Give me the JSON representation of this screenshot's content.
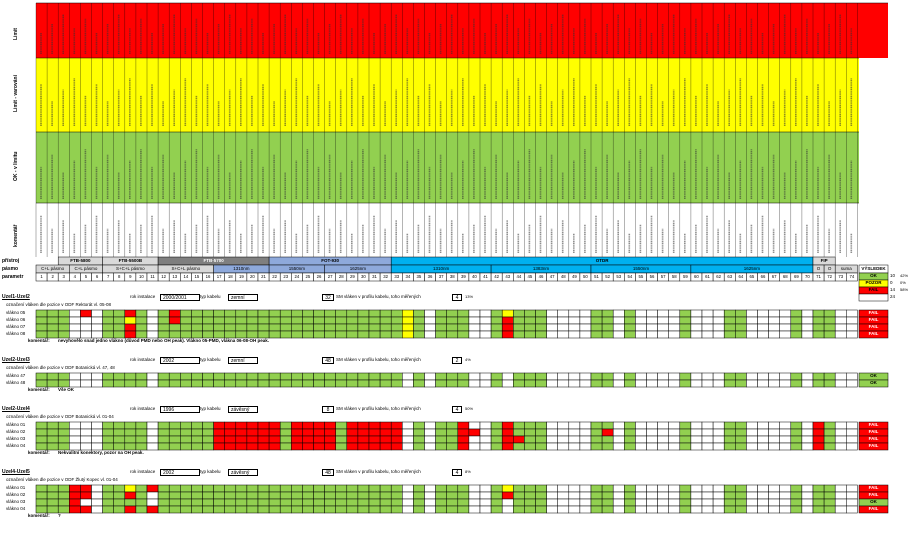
{
  "header": {
    "band_labels": {
      "limit": "Limit",
      "warning": "Limit - varování",
      "ok": "OK - v limitu",
      "comments": "komentář"
    },
    "row_labels": {
      "instrument": "přístroj",
      "band": "pásmo",
      "param": "parametr"
    },
    "instruments": [
      {
        "name": "FTB-5800",
        "color": "#d9d9d9"
      },
      {
        "name": "FTB-5500B",
        "color": "#d9d9d9"
      },
      {
        "name": "FTB-5700",
        "color": "#7f7f7f"
      },
      {
        "name": "FOT-930",
        "color": "#8ea9db"
      },
      {
        "name": "OTDR",
        "color": "#00b0f0"
      },
      {
        "name": "FIP",
        "color": "#d9d9d9"
      }
    ],
    "bands": [
      "C+L pásmo",
      "C+L pásmo",
      "S+C+L pásmo",
      "S+C+L pásmo",
      "1310nm",
      "1550nm",
      "1625nm",
      "1310nm",
      "1383nm",
      "1550nm",
      "1625nm",
      "O",
      "O",
      "suma"
    ],
    "verdict_header": "VÝSLEDEK",
    "param_numbers": [
      "1",
      "2",
      "3",
      "4",
      "5",
      "6",
      "7",
      "8",
      "9",
      "10",
      "11",
      "12",
      "13",
      "14",
      "15",
      "16",
      "17",
      "18",
      "19",
      "20",
      "21",
      "22",
      "23",
      "24",
      "25",
      "26",
      "27",
      "28",
      "29",
      "30",
      "31",
      "32",
      "33",
      "34",
      "35",
      "36",
      "37",
      "38",
      "39",
      "40",
      "41",
      "42",
      "43",
      "44",
      "45",
      "46",
      "47",
      "48",
      "49",
      "50",
      "51",
      "52",
      "53",
      "54",
      "55",
      "56",
      "57",
      "58",
      "59",
      "60",
      "61",
      "62",
      "63",
      "64",
      "65",
      "66",
      "67",
      "68",
      "69",
      "70",
      "71",
      "72",
      "73",
      "74"
    ]
  },
  "summary": [
    {
      "label": "OK",
      "value": "10",
      "pct": "42%",
      "color": "#92d050"
    },
    {
      "label": "POZOR",
      "value": "0",
      "pct": "0%",
      "color": "#ffff00"
    },
    {
      "label": "FAIL",
      "value": "14",
      "pct": "58%",
      "color": "#ff0000"
    },
    {
      "label": "",
      "value": "24",
      "pct": "",
      "color": "#ffffff"
    }
  ],
  "sections": [
    {
      "title": "Uzel1-Uzel2",
      "desc": "označení vláken dle pozice v ODF Rektorát vl. 05-08",
      "year_label": "rok instalace",
      "year": "2000/2001",
      "type_label": "typ kabelu",
      "type": "zemní",
      "count": "32",
      "count_text": "SM vláken v profilu kabelu, toho měřených",
      "measured": "4",
      "pct": "13%",
      "fibers": [
        "vlákno 05",
        "vlákno 06",
        "vlákno 07",
        "vlákno 08"
      ],
      "verdicts": [
        "FAIL",
        "FAIL",
        "FAIL",
        "FAIL"
      ],
      "comment_label": "komentář:",
      "comment": "nevyhovělo snad jedno vlákno (důvod PMD nebo OH peak). Vlákno 05-PMD, vlákna 06-08-OH peak."
    },
    {
      "title": "Uzel2-Uzel3",
      "desc": "označení vláken dle pozice v ODF Botanická vl. 47, 48",
      "year_label": "rok instalace",
      "year": "2002",
      "type_label": "typ kabelu",
      "type": "zemní",
      "count": "48",
      "count_text": "SM vláken v profilu kabelu, toho měřených",
      "measured": "2",
      "pct": "4%",
      "fibers": [
        "vlákno 47",
        "vlákno 48"
      ],
      "verdicts": [
        "OK",
        "OK"
      ],
      "comment_label": "komentář:",
      "comment": "Vše OK"
    },
    {
      "title": "Uzel2-Uzel4",
      "desc": "označení vláken dle pozice v ODF Botanická vl. 01-04",
      "year_label": "rok instalace",
      "year": "1996",
      "type_label": "typ kabelu",
      "type": "závěsný",
      "count": "8",
      "count_text": "SM vláken v profilu kabelu, toho měřených",
      "measured": "4",
      "pct": "50%",
      "fibers": [
        "vlákno 01",
        "vlákno 02",
        "vlákno 03",
        "vlákno 04"
      ],
      "verdicts": [
        "FAIL",
        "FAIL",
        "FAIL",
        "FAIL"
      ],
      "comment_label": "komentář:",
      "comment": "Nekvalitní konektory, pozor na OH peak."
    },
    {
      "title": "Uzel4-Uzel5",
      "desc": "označení vláken dle pozice v ODF Žlutý Kopec vl. 01-04",
      "year_label": "rok instalace",
      "year": "2002",
      "type_label": "typ kabelu",
      "type": "závěsný",
      "count": "48",
      "count_text": "SM vláken v profilu kabelu, toho měřených",
      "measured": "4",
      "pct": "8%",
      "fibers": [
        "vlákno 01",
        "vlákno 02",
        "vlákno 03",
        "vlákno 04"
      ],
      "verdicts": [
        "FAIL",
        "FAIL",
        "OK",
        "FAIL"
      ],
      "comment_label": "komentář:",
      "comment": "?"
    }
  ],
  "colors": {
    "ok": "#92d050",
    "warn": "#ffff00",
    "fail": "#ff0000",
    "limit_band": "#ff0000",
    "warn_band": "#ffff00",
    "ok_band": "#92d050"
  }
}
